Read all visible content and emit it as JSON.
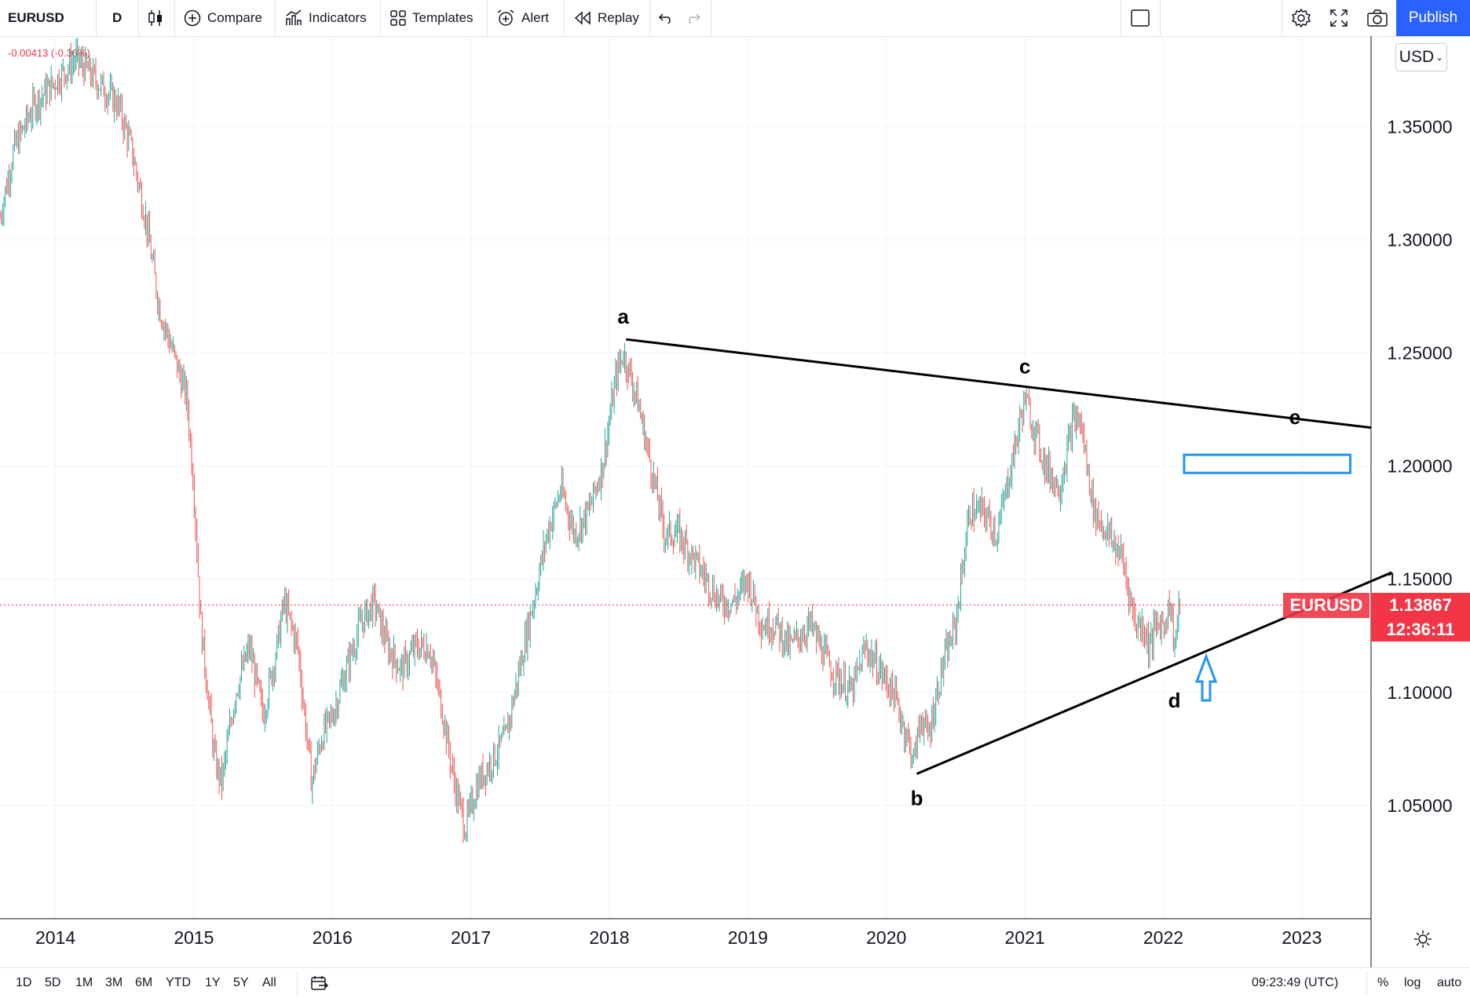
{
  "toolbar": {
    "symbol": "EURUSD",
    "interval": "D",
    "compare": "Compare",
    "indicators": "Indicators",
    "templates": "Templates",
    "alert": "Alert",
    "replay": "Replay",
    "publish": "Publish"
  },
  "header": {
    "change_text": "-0.00413 (-0.36%)"
  },
  "price_scale": {
    "currency": "USD",
    "ticks": [
      "1.35000",
      "1.30000",
      "1.25000",
      "1.20000",
      "1.15000",
      "1.10000",
      "1.05000"
    ],
    "symbol_label": "EURUSD",
    "last_price": "1.13867",
    "countdown": "12:36:11"
  },
  "time_scale": {
    "ticks": [
      "2014",
      "2015",
      "2016",
      "2017",
      "2018",
      "2019",
      "2020",
      "2021",
      "2022",
      "2023"
    ]
  },
  "bottom": {
    "ranges": [
      "1D",
      "5D",
      "1M",
      "3M",
      "6M",
      "YTD",
      "1Y",
      "5Y",
      "All"
    ],
    "clock": "09:23:49 (UTC)",
    "percent": "%",
    "log": "log",
    "auto": "auto"
  },
  "chart_data": {
    "type": "line",
    "title": "EURUSD",
    "interval": "D",
    "xlim": [
      2013.6,
      2023.5
    ],
    "ylim": [
      1.0,
      1.39
    ],
    "ytick_values": [
      1.05,
      1.1,
      1.15,
      1.2,
      1.25,
      1.3,
      1.35
    ],
    "xtick_values": [
      2014,
      2015,
      2016,
      2017,
      2018,
      2019,
      2020,
      2021,
      2022,
      2023
    ],
    "last_price": 1.13867,
    "series": [
      {
        "x": [
          2013.6,
          2013.7,
          2013.85,
          2014.0,
          2014.15,
          2014.3,
          2014.45,
          2014.55,
          2014.65,
          2014.75,
          2014.85,
          2014.95,
          2015.0,
          2015.05,
          2015.1,
          2015.15,
          2015.2,
          2015.3,
          2015.4,
          2015.5,
          2015.6,
          2015.65,
          2015.75,
          2015.85,
          2015.92,
          2016.0,
          2016.1,
          2016.2,
          2016.3,
          2016.4,
          2016.5,
          2016.6,
          2016.7,
          2016.8,
          2016.88,
          2016.96,
          2017.05,
          2017.15,
          2017.25,
          2017.35,
          2017.45,
          2017.55,
          2017.65,
          2017.75,
          2017.85,
          2017.95,
          2018.05,
          2018.1,
          2018.2,
          2018.3,
          2018.4,
          2018.5,
          2018.6,
          2018.7,
          2018.8,
          2018.9,
          2019.0,
          2019.1,
          2019.2,
          2019.3,
          2019.45,
          2019.6,
          2019.75,
          2019.85,
          2019.95,
          2020.05,
          2020.15,
          2020.2,
          2020.25,
          2020.3,
          2020.4,
          2020.5,
          2020.6,
          2020.7,
          2020.8,
          2020.9,
          2021.0,
          2021.05,
          2021.15,
          2021.25,
          2021.35,
          2021.4,
          2021.5,
          2021.6,
          2021.7,
          2021.8,
          2021.85,
          2021.9,
          2021.95,
          2022.0,
          2022.05,
          2022.08,
          2022.12
        ],
        "y": [
          1.31,
          1.34,
          1.36,
          1.37,
          1.38,
          1.37,
          1.36,
          1.34,
          1.31,
          1.27,
          1.25,
          1.23,
          1.19,
          1.13,
          1.1,
          1.07,
          1.06,
          1.1,
          1.12,
          1.09,
          1.12,
          1.14,
          1.12,
          1.06,
          1.08,
          1.09,
          1.11,
          1.13,
          1.14,
          1.12,
          1.11,
          1.12,
          1.12,
          1.09,
          1.06,
          1.04,
          1.06,
          1.07,
          1.08,
          1.11,
          1.14,
          1.17,
          1.19,
          1.17,
          1.18,
          1.2,
          1.24,
          1.25,
          1.23,
          1.2,
          1.17,
          1.17,
          1.16,
          1.15,
          1.14,
          1.14,
          1.15,
          1.13,
          1.13,
          1.12,
          1.13,
          1.11,
          1.1,
          1.12,
          1.11,
          1.1,
          1.08,
          1.07,
          1.09,
          1.08,
          1.11,
          1.13,
          1.18,
          1.18,
          1.17,
          1.2,
          1.23,
          1.22,
          1.2,
          1.19,
          1.22,
          1.22,
          1.18,
          1.17,
          1.16,
          1.13,
          1.13,
          1.12,
          1.13,
          1.13,
          1.14,
          1.12,
          1.14
        ]
      }
    ],
    "annotations": [
      {
        "label": "a",
        "x": 2018.1,
        "y": 1.256
      },
      {
        "label": "b",
        "x": 2020.22,
        "y": 1.064
      },
      {
        "label": "c",
        "x": 2021.0,
        "y": 1.234
      },
      {
        "label": "d",
        "x": 2022.08,
        "y": 1.11
      },
      {
        "label": "e",
        "x": 2022.95,
        "y": 1.213
      }
    ],
    "trendlines": [
      {
        "name": "upper",
        "x1": 2018.12,
        "y1": 1.256,
        "x2": 2023.5,
        "y2": 1.217
      },
      {
        "name": "lower",
        "x1": 2020.22,
        "y1": 1.064,
        "x2": 2023.65,
        "y2": 1.153
      }
    ],
    "target_box": {
      "x1": 2022.15,
      "x2": 2023.35,
      "y1": 1.197,
      "y2": 1.205
    },
    "colors": {
      "up": "#26a69a",
      "down": "#ef5350",
      "trendline": "#000000",
      "target": "#2196f3",
      "price": "#f23645"
    }
  }
}
